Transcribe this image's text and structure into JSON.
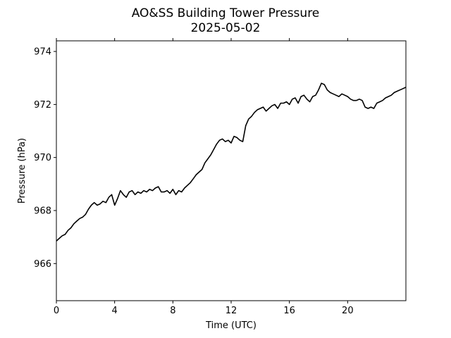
{
  "chart_data": {
    "type": "line",
    "title": "AO&SS Building Tower Pressure",
    "subtitle": "2025-05-02",
    "xlabel": "Time (UTC)",
    "ylabel": "Pressure (hPa)",
    "xlim": [
      0,
      24
    ],
    "ylim": [
      964.6,
      974.4
    ],
    "xticks": [
      0,
      4,
      8,
      12,
      16,
      20
    ],
    "yticks": [
      966,
      968,
      970,
      972,
      974
    ],
    "grid": false,
    "line_color": "#000000",
    "series": [
      {
        "x": [
          0,
          0.2,
          0.4,
          0.6,
          0.8,
          1.0,
          1.2,
          1.4,
          1.6,
          1.8,
          2.0,
          2.2,
          2.4,
          2.6,
          2.8,
          3.0,
          3.2,
          3.4,
          3.6,
          3.8,
          4.0,
          4.2,
          4.4,
          4.6,
          4.8,
          5.0,
          5.2,
          5.4,
          5.6,
          5.8,
          6.0,
          6.2,
          6.4,
          6.6,
          6.8,
          7.0,
          7.2,
          7.4,
          7.6,
          7.8,
          8.0,
          8.2,
          8.4,
          8.6,
          8.8,
          9.0,
          9.2,
          9.4,
          9.6,
          9.8,
          10.0,
          10.2,
          10.4,
          10.6,
          10.8,
          11.0,
          11.2,
          11.4,
          11.6,
          11.8,
          12.0,
          12.2,
          12.4,
          12.6,
          12.8,
          13.0,
          13.2,
          13.4,
          13.6,
          13.8,
          14.0,
          14.2,
          14.4,
          14.6,
          14.8,
          15.0,
          15.2,
          15.4,
          15.6,
          15.8,
          16.0,
          16.2,
          16.4,
          16.6,
          16.8,
          17.0,
          17.2,
          17.4,
          17.6,
          17.8,
          18.0,
          18.2,
          18.4,
          18.6,
          18.8,
          19.0,
          19.2,
          19.4,
          19.6,
          19.8,
          20.0,
          20.2,
          20.4,
          20.6,
          20.8,
          21.0,
          21.2,
          21.4,
          21.6,
          21.8,
          22.0,
          22.2,
          22.4,
          22.6,
          22.8,
          23.0,
          23.2,
          23.4,
          23.6,
          23.8,
          24.0
        ],
        "values": [
          966.85,
          966.95,
          967.05,
          967.1,
          967.25,
          967.35,
          967.5,
          967.6,
          967.7,
          967.75,
          967.85,
          968.05,
          968.2,
          968.3,
          968.2,
          968.25,
          968.35,
          968.3,
          968.5,
          968.6,
          968.2,
          968.45,
          968.75,
          968.6,
          968.5,
          968.7,
          968.75,
          968.6,
          968.7,
          968.65,
          968.75,
          968.7,
          968.8,
          968.75,
          968.85,
          968.9,
          968.7,
          968.7,
          968.75,
          968.65,
          968.8,
          968.6,
          968.75,
          968.7,
          968.85,
          968.95,
          969.05,
          969.2,
          969.35,
          969.45,
          969.55,
          969.8,
          969.95,
          970.1,
          970.3,
          970.5,
          970.65,
          970.7,
          970.6,
          970.65,
          970.55,
          970.8,
          970.75,
          970.65,
          970.6,
          971.2,
          971.45,
          971.55,
          971.7,
          971.8,
          971.85,
          971.9,
          971.75,
          971.85,
          971.95,
          972.0,
          971.85,
          972.05,
          972.05,
          972.1,
          972.0,
          972.2,
          972.25,
          972.05,
          972.3,
          972.35,
          972.2,
          972.1,
          972.3,
          972.35,
          972.55,
          972.8,
          972.75,
          972.55,
          972.45,
          972.4,
          972.35,
          972.3,
          972.4,
          972.35,
          972.3,
          972.2,
          972.15,
          972.15,
          972.2,
          972.15,
          971.9,
          971.85,
          971.9,
          971.85,
          972.05,
          972.1,
          972.15,
          972.25,
          972.3,
          972.35,
          972.45,
          972.5,
          972.55,
          972.6,
          972.65
        ]
      }
    ]
  }
}
